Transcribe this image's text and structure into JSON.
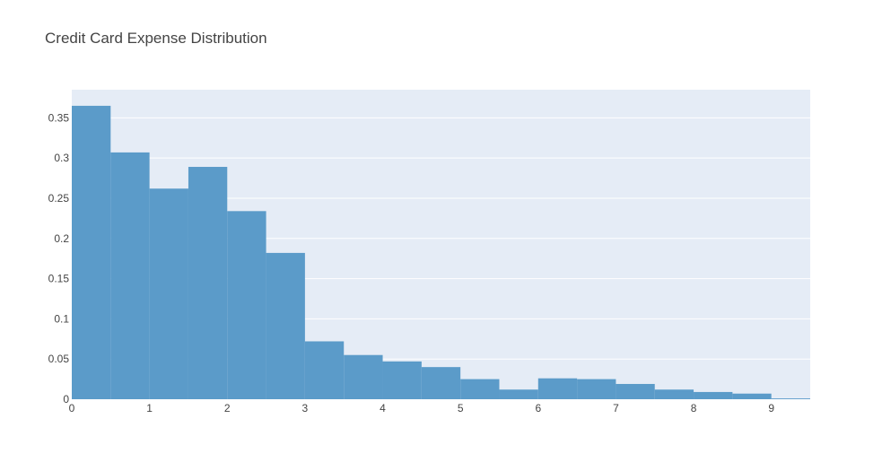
{
  "chart_data": {
    "type": "bar",
    "title": "Credit Card Expense Distribution",
    "xlabel": "",
    "ylabel": "",
    "bin_width": 0.5,
    "x": [
      0,
      0.5,
      1,
      1.5,
      2,
      2.5,
      3,
      3.5,
      4,
      4.5,
      5,
      5.5,
      6,
      6.5,
      7,
      7.5,
      8,
      8.5,
      9
    ],
    "values": [
      0.365,
      0.307,
      0.262,
      0.289,
      0.234,
      0.182,
      0.072,
      0.055,
      0.047,
      0.04,
      0.025,
      0.012,
      0.026,
      0.025,
      0.019,
      0.012,
      0.009,
      0.007,
      0.001
    ],
    "xlim": [
      0,
      9.5
    ],
    "ylim": [
      0,
      0.385
    ],
    "x_ticks": [
      0,
      1,
      2,
      3,
      4,
      5,
      6,
      7,
      8,
      9
    ],
    "x_tick_labels": [
      "0",
      "1",
      "2",
      "3",
      "4",
      "5",
      "6",
      "7",
      "8",
      "9"
    ],
    "y_ticks": [
      0,
      0.05,
      0.1,
      0.15,
      0.2,
      0.25,
      0.3,
      0.35
    ],
    "y_tick_labels": [
      "0",
      "0.05",
      "0.1",
      "0.15",
      "0.2",
      "0.25",
      "0.3",
      "0.35"
    ],
    "grid": true,
    "legend": false,
    "colors": {
      "bar": "#5b9bc9",
      "plot_bg": "#e5ecf6",
      "grid": "#ffffff",
      "text": "#444444"
    }
  }
}
